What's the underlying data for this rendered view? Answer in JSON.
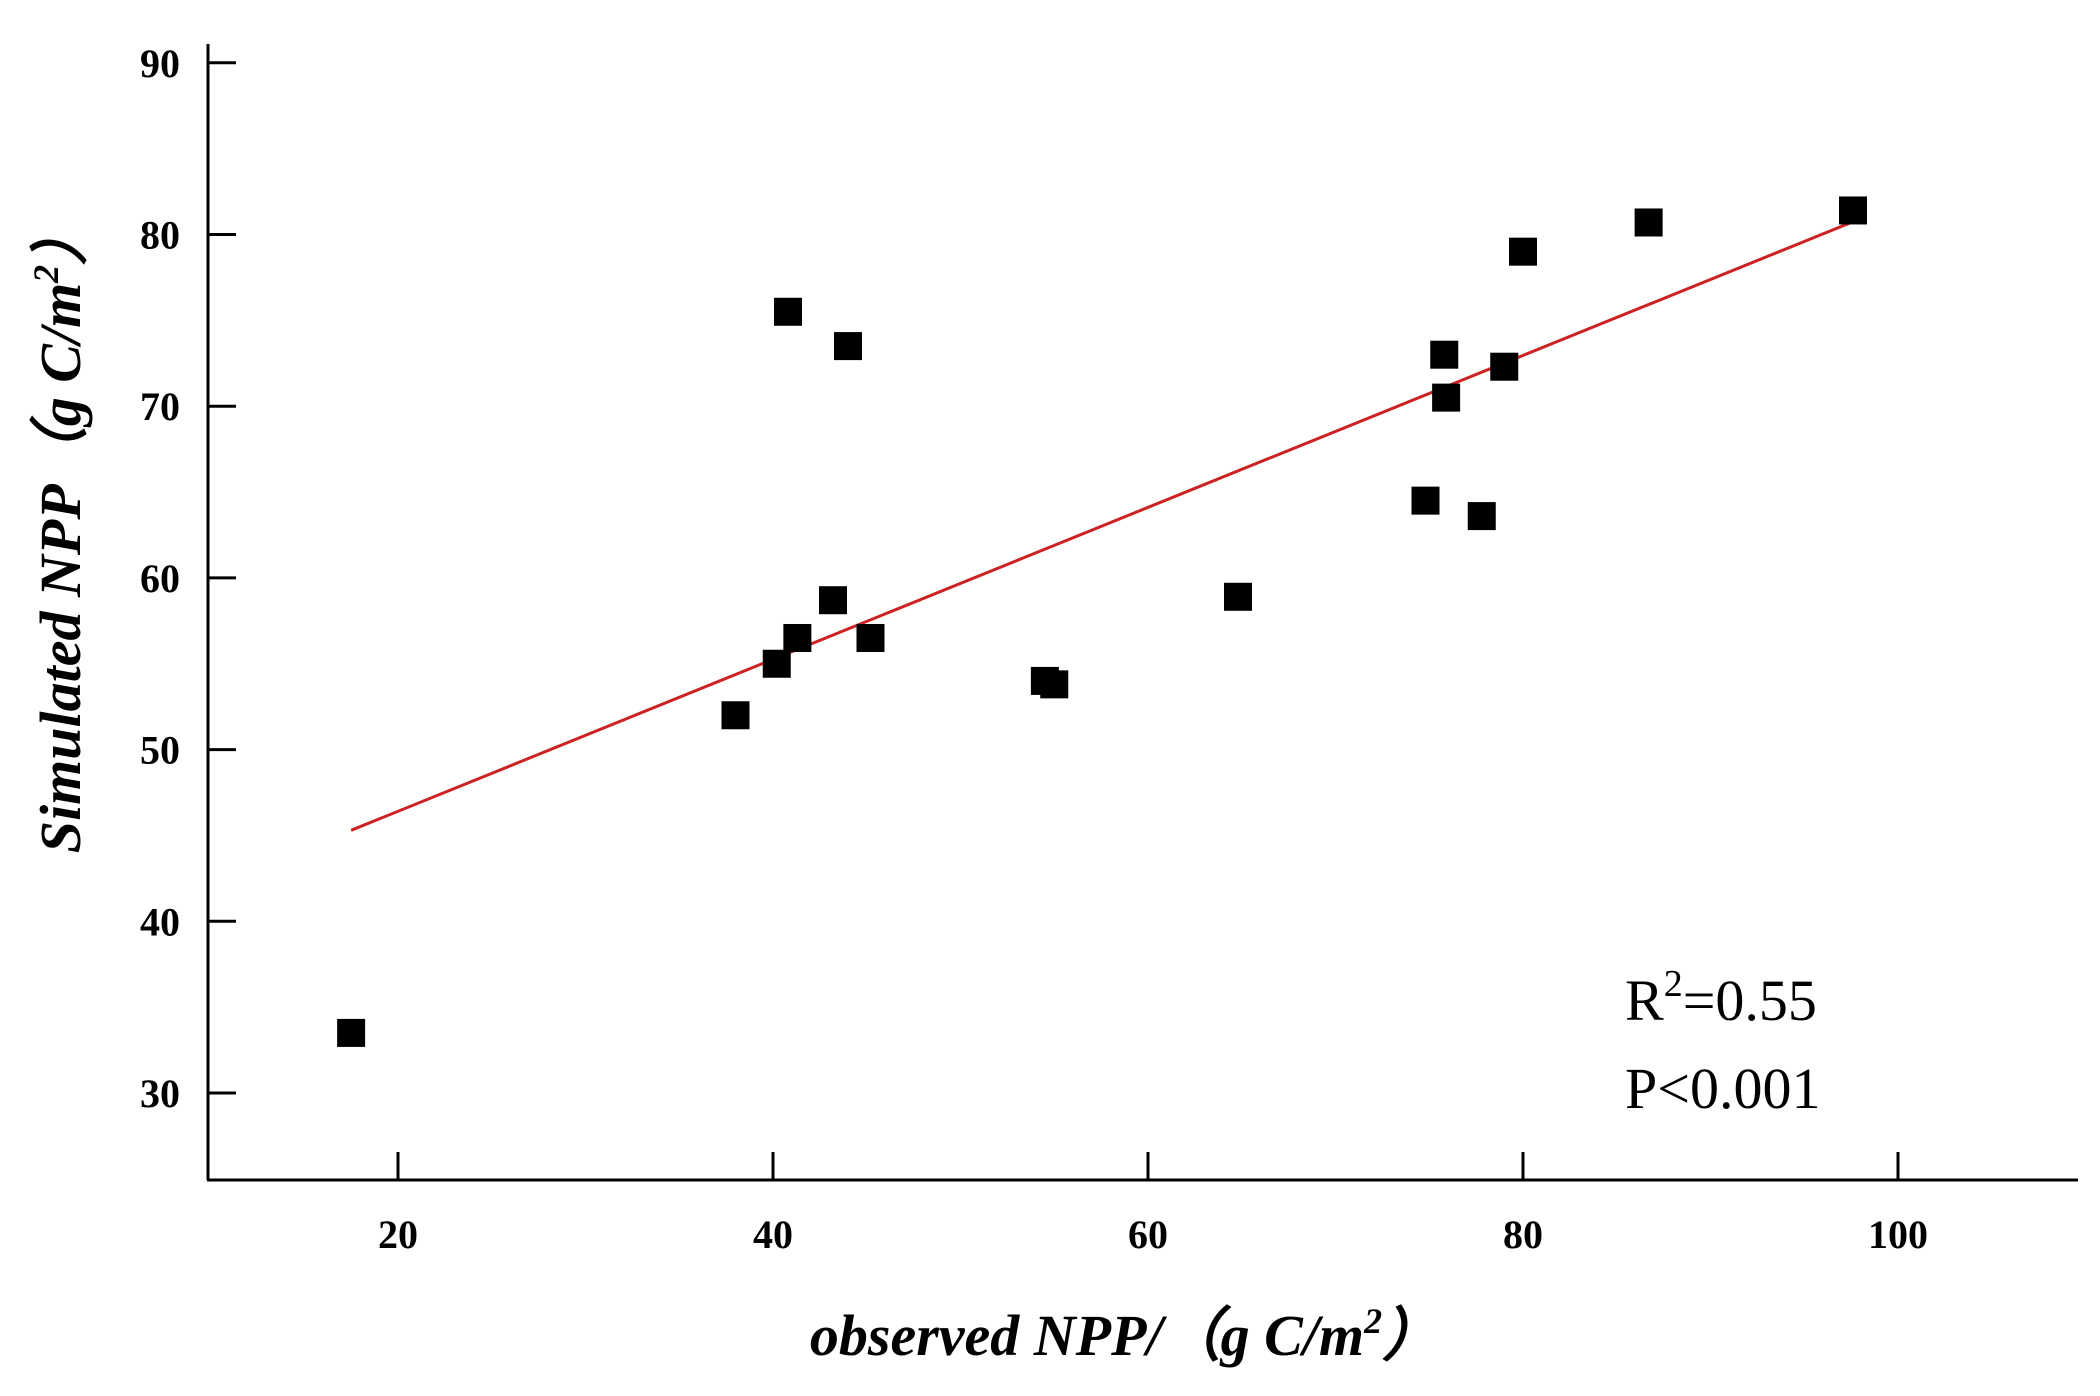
{
  "chart_data": {
    "type": "scatter",
    "xlabel": "observed NPP/（g C/m",
    "xlabel_sup": "2",
    "xlabel_close": "）",
    "ylabel": "Simulated NPP（g C/m",
    "ylabel_sup": "2",
    "ylabel_close": "）",
    "xlim": [
      10,
      110
    ],
    "ylim": [
      25,
      90
    ],
    "xticks": [
      "20",
      "40",
      "60",
      "80",
      "100"
    ],
    "xtick_values": [
      20,
      40,
      60,
      80,
      100
    ],
    "yticks": [
      "30",
      "40",
      "50",
      "60",
      "70",
      "80",
      "90"
    ],
    "ytick_values": [
      30,
      40,
      50,
      60,
      70,
      80,
      90
    ],
    "grid": false,
    "marker_color": "#000000",
    "series": [
      {
        "marker": "square",
        "points": [
          {
            "x": 17.5,
            "y": 33.5
          },
          {
            "x": 38.0,
            "y": 52.0
          },
          {
            "x": 40.2,
            "y": 55.0
          },
          {
            "x": 41.3,
            "y": 56.5
          },
          {
            "x": 40.8,
            "y": 75.5
          },
          {
            "x": 43.2,
            "y": 58.7
          },
          {
            "x": 44.0,
            "y": 73.5
          },
          {
            "x": 45.2,
            "y": 56.5
          },
          {
            "x": 54.5,
            "y": 54.0
          },
          {
            "x": 55.0,
            "y": 53.8
          },
          {
            "x": 64.8,
            "y": 58.9
          },
          {
            "x": 74.8,
            "y": 64.5
          },
          {
            "x": 75.8,
            "y": 73.0
          },
          {
            "x": 75.9,
            "y": 70.5
          },
          {
            "x": 77.8,
            "y": 63.6
          },
          {
            "x": 79.0,
            "y": 72.3
          },
          {
            "x": 80.0,
            "y": 79.0
          },
          {
            "x": 86.7,
            "y": 80.7
          },
          {
            "x": 97.6,
            "y": 81.4
          }
        ]
      }
    ],
    "fit_line": {
      "color": "#cc2222",
      "x": [
        17.5,
        97.5
      ],
      "y": [
        45.3,
        80.7
      ]
    },
    "annotation": {
      "r2_prefix": "R",
      "r2_sup": "2",
      "r2_value": "=0.55",
      "p_text": "P<0.001"
    }
  }
}
